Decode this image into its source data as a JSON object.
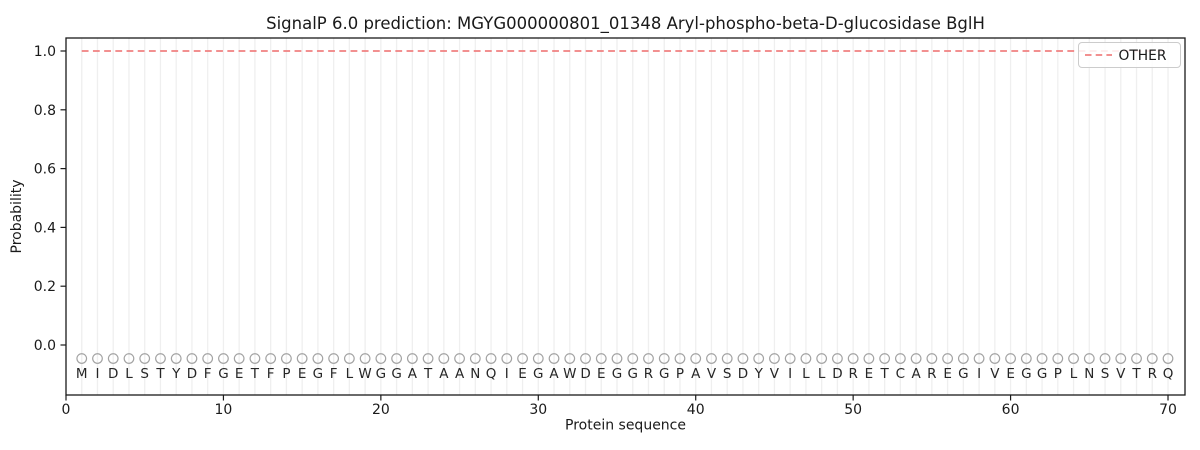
{
  "title": "SignalP 6.0 prediction: MGYG000000801_01348 Aryl-phospho-beta-D-glucosidase BglH",
  "axes": {
    "xlabel": "Protein sequence",
    "ylabel": "Probability",
    "x_ticks": [
      0,
      10,
      20,
      30,
      40,
      50,
      60,
      70
    ],
    "y_ticks": [
      "0.0",
      "0.2",
      "0.4",
      "0.6",
      "0.8",
      "1.0"
    ]
  },
  "legend": {
    "position": "upper right",
    "entries": [
      {
        "label": "OTHER",
        "line_style": "dashed",
        "color": "#f08080"
      }
    ]
  },
  "chart_data": {
    "type": "line",
    "title": "SignalP 6.0 prediction: MGYG000000801_01348 Aryl-phospho-beta-D-glucosidase BglH",
    "xlabel": "Protein sequence",
    "ylabel": "Probability",
    "xlim": [
      0,
      71.1
    ],
    "ylim": [
      -0.17,
      1.045
    ],
    "x_ticks": [
      0,
      10,
      20,
      30,
      40,
      50,
      60,
      70
    ],
    "y_ticks": [
      0.0,
      0.2,
      0.4,
      0.6,
      0.8,
      1.0
    ],
    "grid": {
      "vertical_gridline_per_residue": true,
      "horizontal": false
    },
    "legend_position": "upper right",
    "series": [
      {
        "name": "OTHER",
        "style": "dashed",
        "color": "#f08080",
        "x_range": [
          1,
          70
        ],
        "constant_value": 1.0,
        "description": "OTHER probability is a constant 1.0 across all 70 residues"
      }
    ],
    "sequence": "MIDLSTYDFGETFPEGFLWGGATAANQIEGAWDEGGRGPAVSDYVILLDRETCAREGIVEGGPLNSVTRQ",
    "sequence_positions": {
      "first": 1,
      "last": 70
    },
    "residue_markers": {
      "shape": "open-circle",
      "value": -0.046
    }
  },
  "colors": {
    "background": "#ffffff",
    "spine": "#1a1a1a",
    "grid": "#efefef",
    "other_line": "#f08080",
    "marker_outline": "#a3a3a3",
    "sequence_letter": "#262626",
    "legend_border": "#cccccc"
  }
}
